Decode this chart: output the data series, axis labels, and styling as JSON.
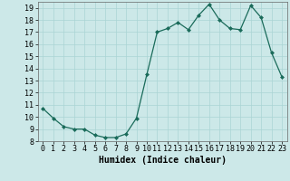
{
  "x": [
    0,
    1,
    2,
    3,
    4,
    5,
    6,
    7,
    8,
    9,
    10,
    11,
    12,
    13,
    14,
    15,
    16,
    17,
    18,
    19,
    20,
    21,
    22,
    23
  ],
  "y": [
    10.7,
    9.9,
    9.2,
    9.0,
    9.0,
    8.5,
    8.3,
    8.3,
    8.6,
    9.9,
    13.5,
    17.0,
    17.3,
    17.8,
    17.2,
    18.4,
    19.3,
    18.0,
    17.3,
    17.2,
    19.2,
    18.2,
    15.3,
    13.3
  ],
  "xlabel": "Humidex (Indice chaleur)",
  "xlim": [
    -0.5,
    23.5
  ],
  "ylim": [
    8,
    19.5
  ],
  "yticks": [
    8,
    9,
    10,
    11,
    12,
    13,
    14,
    15,
    16,
    17,
    18,
    19
  ],
  "xticks": [
    0,
    1,
    2,
    3,
    4,
    5,
    6,
    7,
    8,
    9,
    10,
    11,
    12,
    13,
    14,
    15,
    16,
    17,
    18,
    19,
    20,
    21,
    22,
    23
  ],
  "line_color": "#1a6b5a",
  "marker_color": "#1a6b5a",
  "bg_color": "#cce8e8",
  "grid_color": "#aad4d4",
  "label_fontsize": 7,
  "tick_fontsize": 6
}
